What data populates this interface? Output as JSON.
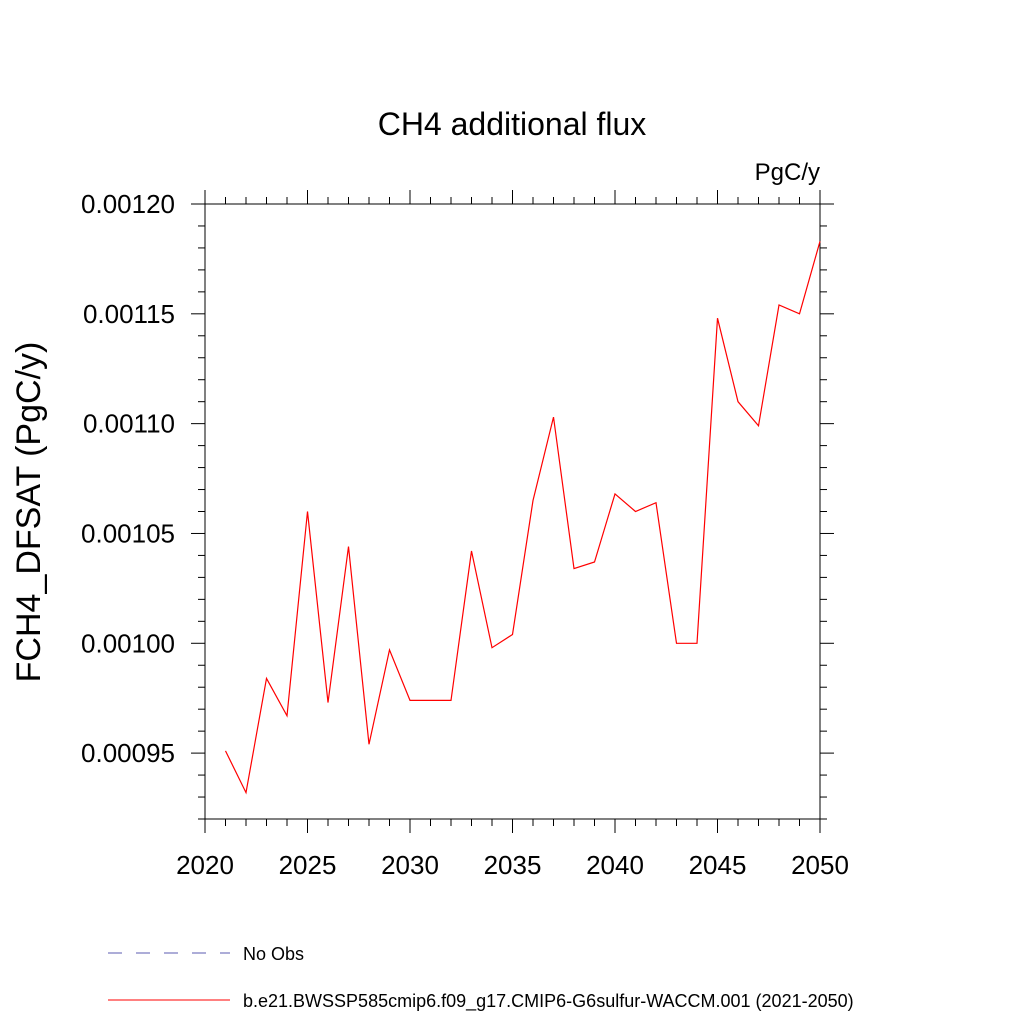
{
  "chart_data": {
    "type": "line",
    "title": "CH4 additional flux",
    "units_label": "PgC/y",
    "ylabel": "FCH4_DFSAT  (PgC/y)",
    "xlabel": "",
    "xlim": [
      2020,
      2050
    ],
    "ylim": [
      0.00092,
      0.0012
    ],
    "x_ticks": [
      2020,
      2025,
      2030,
      2035,
      2040,
      2045,
      2050
    ],
    "y_ticks": [
      0.00095,
      0.001,
      0.00105,
      0.0011,
      0.00115,
      0.0012
    ],
    "x_tick_labels": [
      "2020",
      "2025",
      "2030",
      "2035",
      "2040",
      "2045",
      "2050"
    ],
    "y_tick_labels": [
      "0.00095",
      "0.00100",
      "0.00105",
      "0.00110",
      "0.00115",
      "0.00120"
    ],
    "grid": false,
    "legend_position": "bottom",
    "series": [
      {
        "name": "b.e21.BWSSP585cmip6.f09_g17.CMIP6-G6sulfur-WACCM.001 (2021-2050)",
        "color": "#ff0000",
        "dash": "solid",
        "x": [
          2021,
          2022,
          2023,
          2024,
          2025,
          2026,
          2027,
          2028,
          2029,
          2030,
          2031,
          2032,
          2033,
          2034,
          2035,
          2036,
          2037,
          2038,
          2039,
          2040,
          2041,
          2042,
          2043,
          2044,
          2045,
          2046,
          2047,
          2048,
          2049,
          2050
        ],
        "y": [
          0.000951,
          0.000932,
          0.000984,
          0.000967,
          0.00106,
          0.000973,
          0.001044,
          0.000954,
          0.000997,
          0.000974,
          0.000974,
          0.000974,
          0.001042,
          0.000998,
          0.001004,
          0.001065,
          0.001103,
          0.001034,
          0.001037,
          0.001068,
          0.00106,
          0.001064,
          0.001,
          0.001,
          0.001148,
          0.00111,
          0.001099,
          0.001154,
          0.00115,
          0.001183
        ]
      }
    ],
    "legend": [
      {
        "label": "No Obs",
        "color": "#5b5bb0",
        "dash": "dashed"
      },
      {
        "label": "b.e21.BWSSP585cmip6.f09_g17.CMIP6-G6sulfur-WACCM.001 (2021-2050)",
        "color": "#ff0000",
        "dash": "solid"
      }
    ]
  }
}
